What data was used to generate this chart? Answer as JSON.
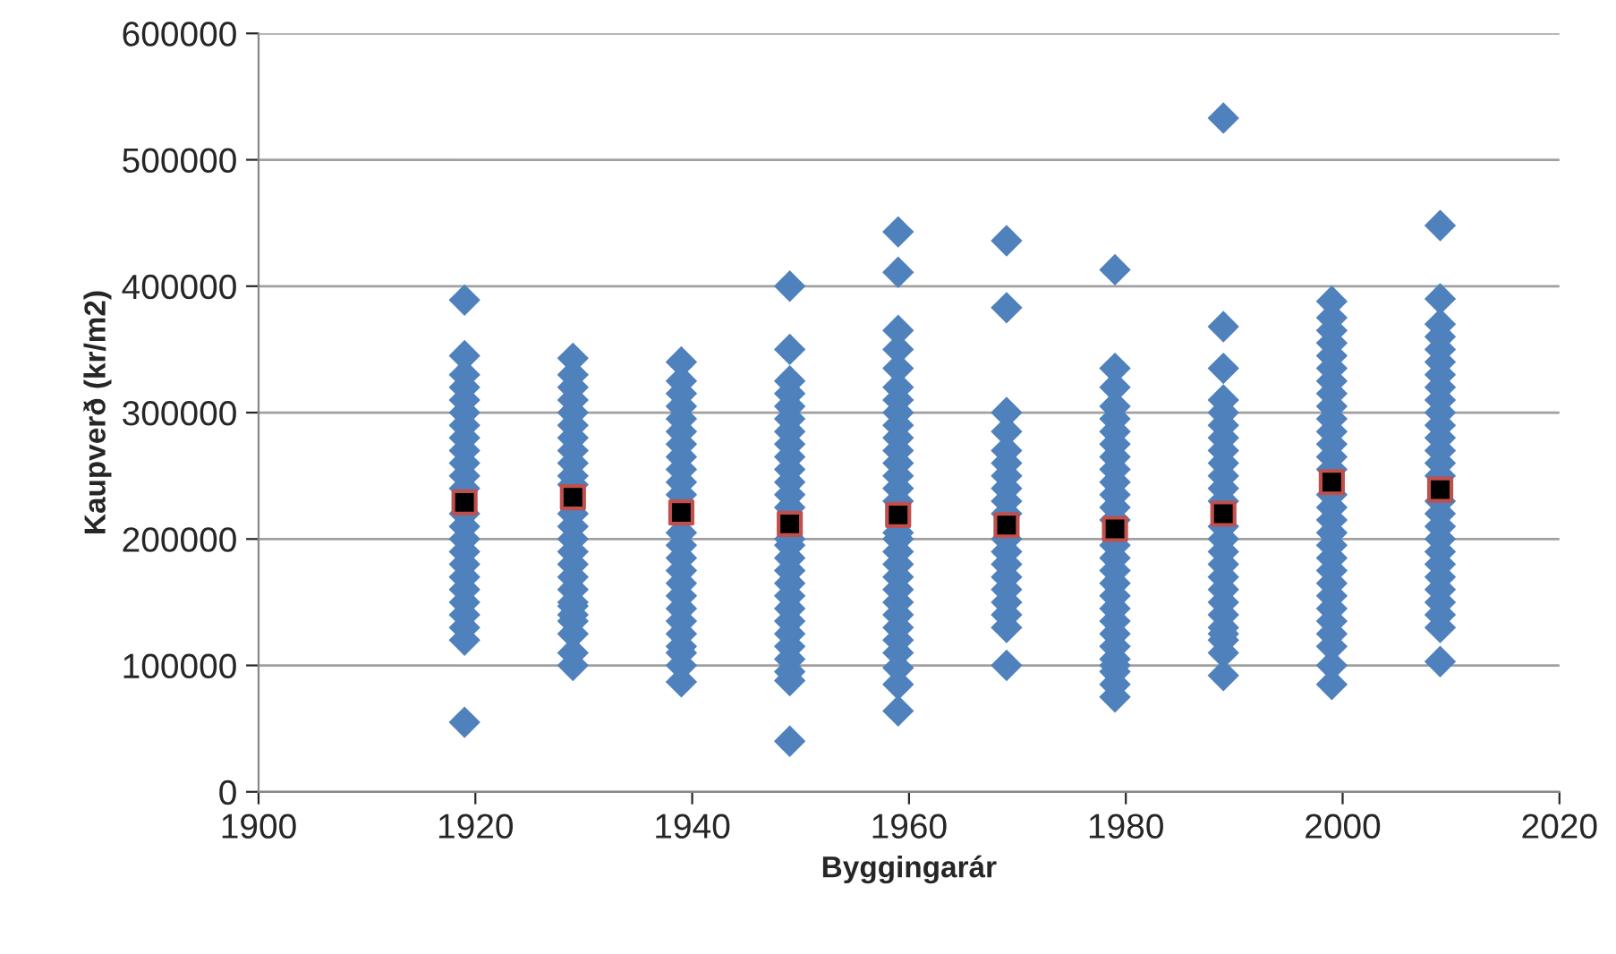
{
  "chart_data": {
    "type": "scatter",
    "xlabel": "Byggingarár",
    "ylabel": "Kaupverð (kr/m2)",
    "xlim": [
      1900,
      2020
    ],
    "xticks": [
      1900,
      1920,
      1940,
      1960,
      1980,
      2000,
      2020
    ],
    "ylim": [
      0,
      600000
    ],
    "yticks": [
      0,
      100000,
      200000,
      300000,
      400000,
      500000,
      600000
    ],
    "grid": "y",
    "legend": false,
    "series": [
      {
        "color": "#4f81bd",
        "marker": "diamond",
        "x": [
          1919,
          1919,
          1919,
          1919,
          1919,
          1919,
          1919,
          1919,
          1919,
          1919,
          1919,
          1919,
          1919,
          1919,
          1919,
          1919,
          1919,
          1919,
          1919,
          1919,
          1919,
          1919,
          1919,
          1919,
          1929,
          1929,
          1929,
          1929,
          1929,
          1929,
          1929,
          1929,
          1929,
          1929,
          1929,
          1929,
          1929,
          1929,
          1929,
          1929,
          1929,
          1929,
          1929,
          1929,
          1929,
          1929,
          1929,
          1929,
          1929,
          1939,
          1939,
          1939,
          1939,
          1939,
          1939,
          1939,
          1939,
          1939,
          1939,
          1939,
          1939,
          1939,
          1939,
          1939,
          1939,
          1939,
          1939,
          1939,
          1939,
          1939,
          1939,
          1939,
          1939,
          1949,
          1949,
          1949,
          1949,
          1949,
          1949,
          1949,
          1949,
          1949,
          1949,
          1949,
          1949,
          1949,
          1949,
          1949,
          1949,
          1949,
          1949,
          1949,
          1949,
          1949,
          1949,
          1949,
          1949,
          1949,
          1949,
          1949,
          1959,
          1959,
          1959,
          1959,
          1959,
          1959,
          1959,
          1959,
          1959,
          1959,
          1959,
          1959,
          1959,
          1959,
          1959,
          1959,
          1959,
          1959,
          1959,
          1959,
          1959,
          1959,
          1959,
          1959,
          1959,
          1959,
          1959,
          1959,
          1959,
          1969,
          1969,
          1969,
          1969,
          1969,
          1969,
          1969,
          1969,
          1969,
          1969,
          1969,
          1969,
          1969,
          1969,
          1969,
          1969,
          1969,
          1969,
          1969,
          1979,
          1979,
          1979,
          1979,
          1979,
          1979,
          1979,
          1979,
          1979,
          1979,
          1979,
          1979,
          1979,
          1979,
          1979,
          1979,
          1979,
          1979,
          1979,
          1979,
          1979,
          1979,
          1979,
          1979,
          1979,
          1979,
          1979,
          1989,
          1989,
          1989,
          1989,
          1989,
          1989,
          1989,
          1989,
          1989,
          1989,
          1989,
          1989,
          1989,
          1989,
          1989,
          1989,
          1989,
          1989,
          1989,
          1989,
          1989,
          1989,
          1989,
          1989,
          1989,
          1999,
          1999,
          1999,
          1999,
          1999,
          1999,
          1999,
          1999,
          1999,
          1999,
          1999,
          1999,
          1999,
          1999,
          1999,
          1999,
          1999,
          1999,
          1999,
          1999,
          1999,
          1999,
          1999,
          1999,
          1999,
          1999,
          1999,
          1999,
          1999,
          2009,
          2009,
          2009,
          2009,
          2009,
          2009,
          2009,
          2009,
          2009,
          2009,
          2009,
          2009,
          2009,
          2009,
          2009,
          2009,
          2009,
          2009,
          2009,
          2009,
          2009,
          2009,
          2009,
          2009,
          2009,
          2009,
          2009
        ],
        "values": [
          55000,
          120000,
          130000,
          140000,
          150000,
          160000,
          170000,
          180000,
          190000,
          200000,
          210000,
          220000,
          240000,
          250000,
          260000,
          270000,
          280000,
          290000,
          300000,
          310000,
          320000,
          330000,
          345000,
          389000,
          100000,
          110000,
          125000,
          140000,
          150000,
          160000,
          170000,
          180000,
          190000,
          200000,
          210000,
          220000,
          250000,
          260000,
          270000,
          280000,
          290000,
          300000,
          310000,
          320000,
          330000,
          343000,
          147000,
          135000,
          243000,
          87000,
          100000,
          115000,
          125000,
          135000,
          145000,
          155000,
          165000,
          175000,
          185000,
          195000,
          205000,
          235000,
          245000,
          255000,
          265000,
          275000,
          285000,
          295000,
          305000,
          315000,
          325000,
          340000,
          110000,
          40000,
          88000,
          95000,
          105000,
          115000,
          125000,
          135000,
          145000,
          155000,
          165000,
          175000,
          185000,
          195000,
          225000,
          235000,
          245000,
          255000,
          265000,
          275000,
          285000,
          295000,
          305000,
          315000,
          325000,
          350000,
          400000,
          200000,
          64000,
          85000,
          98000,
          110000,
          120000,
          130000,
          140000,
          150000,
          160000,
          170000,
          180000,
          190000,
          200000,
          230000,
          240000,
          250000,
          260000,
          270000,
          280000,
          290000,
          300000,
          310000,
          320000,
          335000,
          350000,
          365000,
          411000,
          443000,
          205000,
          100000,
          130000,
          140000,
          150000,
          160000,
          170000,
          180000,
          190000,
          200000,
          220000,
          230000,
          240000,
          250000,
          260000,
          270000,
          300000,
          383000,
          436000,
          285000,
          75000,
          85000,
          95000,
          105000,
          115000,
          125000,
          135000,
          145000,
          155000,
          165000,
          175000,
          185000,
          195000,
          215000,
          225000,
          235000,
          245000,
          255000,
          265000,
          275000,
          285000,
          295000,
          305000,
          320000,
          335000,
          413000,
          100000,
          92000,
          110000,
          120000,
          130000,
          140000,
          150000,
          160000,
          170000,
          180000,
          190000,
          200000,
          210000,
          230000,
          240000,
          250000,
          260000,
          270000,
          280000,
          290000,
          300000,
          310000,
          335000,
          368000,
          533000,
          125000,
          85000,
          100000,
          115000,
          125000,
          135000,
          145000,
          155000,
          165000,
          175000,
          185000,
          195000,
          205000,
          215000,
          225000,
          235000,
          255000,
          265000,
          275000,
          285000,
          295000,
          305000,
          315000,
          325000,
          335000,
          345000,
          355000,
          365000,
          375000,
          388000,
          103000,
          130000,
          140000,
          150000,
          160000,
          170000,
          180000,
          190000,
          200000,
          210000,
          220000,
          230000,
          250000,
          260000,
          270000,
          280000,
          290000,
          300000,
          310000,
          320000,
          330000,
          340000,
          350000,
          360000,
          370000,
          390000,
          448000
        ]
      },
      {
        "color": "#000000",
        "marker": "square",
        "x": [
          1919,
          1929,
          1939,
          1949,
          1959,
          1969,
          1979,
          1989,
          1999,
          2009
        ],
        "values": [
          229000,
          233000,
          221000,
          212000,
          219000,
          211000,
          208000,
          220000,
          245000,
          239000
        ]
      }
    ]
  }
}
